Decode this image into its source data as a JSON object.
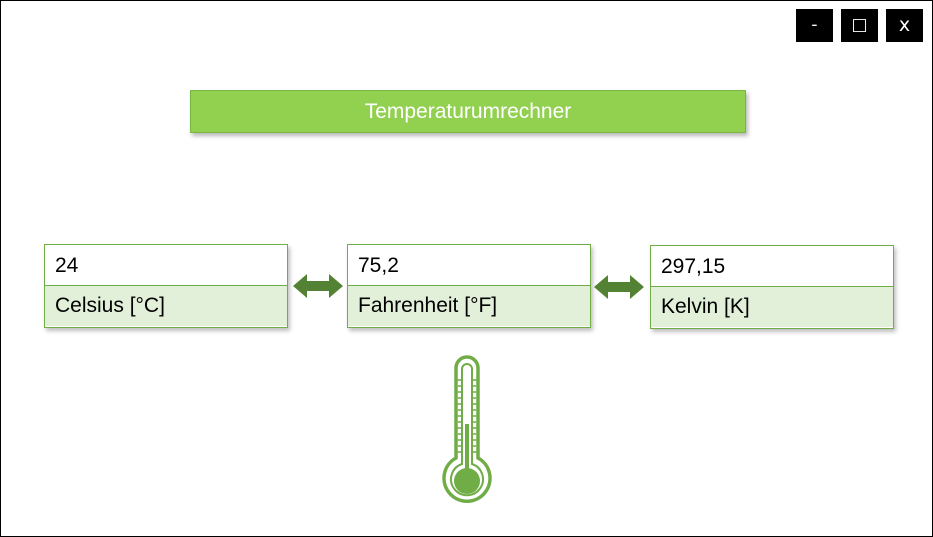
{
  "window_controls": {
    "minimize_label": "-",
    "maximize_label": "□",
    "close_label": "x"
  },
  "app": {
    "title": "Temperaturumrechner"
  },
  "units": [
    {
      "value": "24",
      "label": "Celsius [°C]"
    },
    {
      "value": "75,2",
      "label": "Fahrenheit [°F]"
    },
    {
      "value": "297,15",
      "label": "Kelvin [K]"
    }
  ],
  "icons": {
    "arrows": "double-arrow-icon",
    "thermometer": "thermometer-icon"
  },
  "colors": {
    "accent": "#92d050",
    "border": "#70ad47",
    "label_bg": "#e2efd9",
    "arrow": "#548235",
    "thermometer": "#70ad47"
  }
}
